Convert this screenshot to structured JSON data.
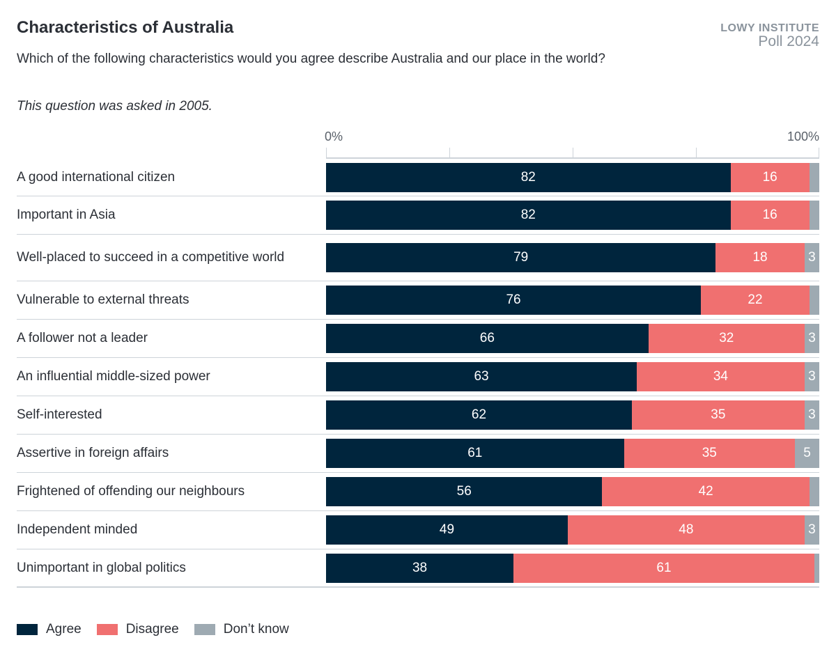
{
  "header": {
    "title": "Characteristics of Australia",
    "subtitle": "Which of the following characteristics would you agree describe Australia and our place in the world?",
    "note": "This question was asked in 2005.",
    "brand_line1": "LOWY INSTITUTE",
    "brand_line2": "Poll 2024"
  },
  "chart_data": {
    "type": "bar",
    "orientation": "horizontal",
    "stacked": true,
    "xlim": [
      0,
      100
    ],
    "tick_labels": [
      "0%",
      "100%"
    ],
    "colors": {
      "Agree": "#00253d",
      "Disagree": "#f07070",
      "Don't know": "#9eaab2"
    },
    "legend_position": "bottom-left",
    "categories": [
      "A good international citizen",
      "Important in Asia",
      "Well-placed to succeed in a competitive world",
      "Vulnerable to external threats",
      "A follower not a leader",
      "An influential middle-sized power",
      "Self-interested",
      "Assertive in foreign affairs",
      "Frightened of offending our neighbours",
      "Independent minded",
      "Unimportant in global politics"
    ],
    "series": [
      {
        "name": "Agree",
        "values": [
          82,
          82,
          79,
          76,
          66,
          63,
          62,
          61,
          56,
          49,
          38
        ]
      },
      {
        "name": "Disagree",
        "values": [
          16,
          16,
          18,
          22,
          32,
          34,
          35,
          35,
          42,
          48,
          61
        ]
      },
      {
        "name": "Don’t know",
        "values": [
          2,
          2,
          3,
          2,
          3,
          3,
          3,
          5,
          2,
          3,
          1
        ]
      }
    ]
  }
}
